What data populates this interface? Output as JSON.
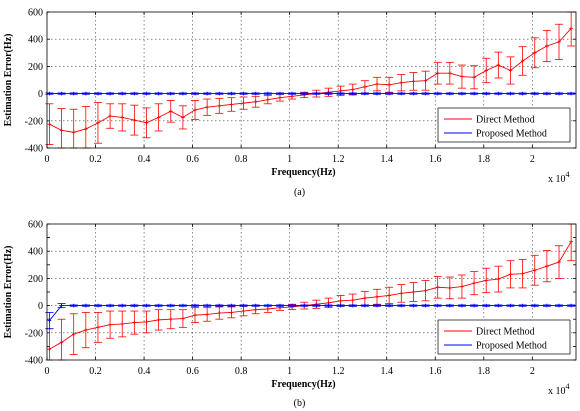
{
  "colors": {
    "direct": "#ff0000",
    "proposed": "#0000ff",
    "axes": "#000000",
    "background": "#ffffff"
  },
  "chart_data": [
    {
      "type": "line",
      "caption": "(a)",
      "xlabel": "Frequency(Hz)",
      "ylabel": "Estimation Error(Hz)",
      "x_multiplier_label": "x 10",
      "x_multiplier_exponent": "4",
      "xlim": [
        0,
        2.18
      ],
      "ylim": [
        -400,
        600
      ],
      "xticks": [
        0,
        0.2,
        0.4,
        0.6,
        0.8,
        1,
        1.2,
        1.4,
        1.6,
        1.8,
        2
      ],
      "xtick_labels": [
        "0",
        "0.2",
        "0.4",
        "0.6",
        "0.8",
        "1",
        "1.2",
        "1.4",
        "1.6",
        "1.8",
        "2"
      ],
      "yticks": [
        -400,
        -200,
        0,
        200,
        400,
        600
      ],
      "ytick_labels": [
        "-400",
        "-200",
        "0",
        "200",
        "400",
        "600"
      ],
      "grid": true,
      "legend_position": "bottom-right",
      "x": [
        0.01,
        0.06,
        0.11,
        0.16,
        0.21,
        0.26,
        0.31,
        0.36,
        0.41,
        0.46,
        0.51,
        0.56,
        0.61,
        0.66,
        0.71,
        0.76,
        0.81,
        0.86,
        0.91,
        0.96,
        1.01,
        1.06,
        1.11,
        1.16,
        1.21,
        1.26,
        1.31,
        1.36,
        1.41,
        1.46,
        1.51,
        1.56,
        1.61,
        1.66,
        1.71,
        1.76,
        1.81,
        1.86,
        1.91,
        1.96,
        2.01,
        2.06,
        2.11,
        2.16
      ],
      "series": [
        {
          "name": "Direct Method",
          "color": "#ff0000",
          "values": [
            -225,
            -270,
            -285,
            -260,
            -215,
            -165,
            -175,
            -195,
            -215,
            -175,
            -130,
            -175,
            -120,
            -100,
            -90,
            -80,
            -70,
            -60,
            -45,
            -30,
            -20,
            -10,
            0,
            10,
            20,
            30,
            50,
            70,
            65,
            80,
            90,
            95,
            150,
            150,
            125,
            120,
            170,
            210,
            170,
            240,
            300,
            350,
            380,
            480
          ],
          "errors": [
            150,
            160,
            170,
            165,
            150,
            90,
            100,
            110,
            110,
            100,
            80,
            85,
            70,
            60,
            55,
            50,
            45,
            40,
            30,
            25,
            20,
            20,
            25,
            30,
            35,
            40,
            45,
            50,
            55,
            60,
            65,
            70,
            80,
            80,
            85,
            85,
            90,
            95,
            100,
            105,
            110,
            115,
            130,
            130
          ]
        },
        {
          "name": "Proposed Method",
          "color": "#0000ff",
          "values": [
            0,
            0,
            0,
            0,
            0,
            0,
            0,
            0,
            0,
            0,
            0,
            0,
            0,
            0,
            0,
            0,
            0,
            0,
            0,
            0,
            0,
            0,
            0,
            0,
            0,
            0,
            0,
            0,
            0,
            0,
            0,
            0,
            0,
            0,
            0,
            0,
            0,
            0,
            0,
            0,
            0,
            0,
            0,
            0
          ],
          "errors": [
            5,
            5,
            5,
            5,
            5,
            5,
            5,
            5,
            5,
            5,
            5,
            5,
            5,
            5,
            5,
            5,
            5,
            5,
            5,
            5,
            5,
            5,
            5,
            5,
            5,
            5,
            5,
            5,
            5,
            5,
            5,
            5,
            5,
            5,
            5,
            5,
            5,
            5,
            5,
            5,
            5,
            5,
            5,
            5
          ]
        }
      ]
    },
    {
      "type": "line",
      "caption": "(b)",
      "xlabel": "Frequency(Hz)",
      "ylabel": "Estimation Error(Hz)",
      "x_multiplier_label": "x 10",
      "x_multiplier_exponent": "4",
      "xlim": [
        0,
        2.18
      ],
      "ylim": [
        -400,
        600
      ],
      "xticks": [
        0,
        0.2,
        0.4,
        0.6,
        0.8,
        1,
        1.2,
        1.4,
        1.6,
        1.8,
        2
      ],
      "xtick_labels": [
        "0",
        "0.2",
        "0.4",
        "0.6",
        "0.8",
        "1",
        "1.2",
        "1.4",
        "1.6",
        "1.8",
        "2"
      ],
      "yticks": [
        -400,
        -300,
        -200,
        -100,
        0,
        100,
        200,
        300,
        400,
        500,
        600
      ],
      "ytick_labels": [
        "-400",
        "",
        "-200",
        "",
        "0",
        "",
        "200",
        "",
        "400",
        "",
        "600"
      ],
      "grid": true,
      "legend_position": "bottom-right",
      "x": [
        0.01,
        0.06,
        0.11,
        0.16,
        0.21,
        0.26,
        0.31,
        0.36,
        0.41,
        0.46,
        0.51,
        0.56,
        0.61,
        0.66,
        0.71,
        0.76,
        0.81,
        0.86,
        0.91,
        0.96,
        1.01,
        1.06,
        1.11,
        1.16,
        1.21,
        1.26,
        1.31,
        1.36,
        1.41,
        1.46,
        1.51,
        1.56,
        1.61,
        1.66,
        1.71,
        1.76,
        1.81,
        1.86,
        1.91,
        1.96,
        2.01,
        2.06,
        2.11,
        2.16
      ],
      "series": [
        {
          "name": "Direct Method",
          "color": "#ff0000",
          "values": [
            -320,
            -270,
            -210,
            -180,
            -160,
            -140,
            -135,
            -125,
            -120,
            -105,
            -100,
            -95,
            -70,
            -65,
            -55,
            -50,
            -40,
            -30,
            -25,
            -15,
            -10,
            0,
            10,
            20,
            35,
            40,
            55,
            65,
            75,
            90,
            100,
            110,
            135,
            130,
            140,
            165,
            185,
            195,
            230,
            235,
            260,
            290,
            320,
            470
          ],
          "errors": [
            150,
            170,
            150,
            130,
            110,
            100,
            95,
            85,
            80,
            75,
            70,
            65,
            55,
            50,
            45,
            40,
            35,
            30,
            25,
            20,
            20,
            25,
            30,
            35,
            40,
            45,
            50,
            55,
            60,
            65,
            70,
            75,
            80,
            80,
            85,
            85,
            90,
            95,
            100,
            105,
            110,
            115,
            120,
            140
          ]
        },
        {
          "name": "Proposed Method",
          "color": "#0000ff",
          "values": [
            -110,
            0,
            0,
            0,
            0,
            0,
            0,
            0,
            0,
            0,
            0,
            0,
            0,
            0,
            0,
            0,
            0,
            0,
            0,
            0,
            0,
            0,
            0,
            0,
            0,
            0,
            0,
            0,
            0,
            0,
            0,
            0,
            0,
            0,
            0,
            0,
            0,
            0,
            0,
            0,
            0,
            0,
            0,
            0
          ],
          "errors": [
            60,
            15,
            5,
            5,
            5,
            5,
            5,
            5,
            5,
            5,
            5,
            5,
            5,
            5,
            5,
            5,
            5,
            5,
            5,
            5,
            5,
            5,
            5,
            5,
            5,
            5,
            5,
            5,
            5,
            5,
            5,
            5,
            5,
            5,
            5,
            5,
            5,
            5,
            5,
            5,
            5,
            5,
            5,
            5
          ]
        }
      ]
    }
  ]
}
